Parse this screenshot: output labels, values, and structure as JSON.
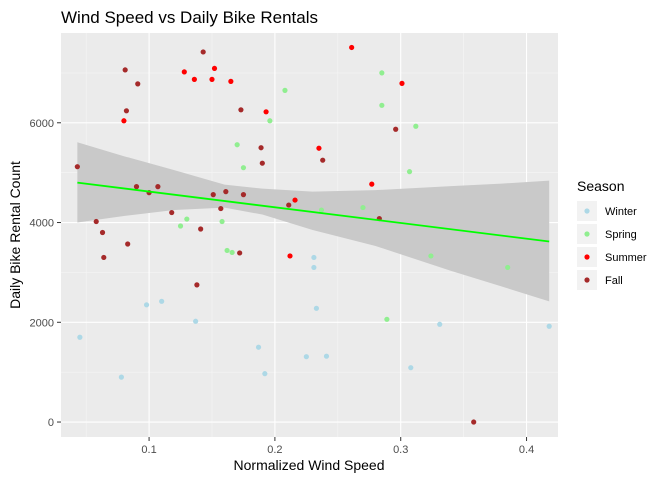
{
  "chart_data": {
    "type": "scatter",
    "title": "Wind Speed vs Daily Bike Rentals",
    "xlabel": "Normalized Wind Speed",
    "ylabel": "Daily Bike Rental Count",
    "xlim": [
      0.03,
      0.425
    ],
    "ylim": [
      -300,
      7800
    ],
    "x_ticks": [
      0.1,
      0.2,
      0.3,
      0.4
    ],
    "x_tick_labels": [
      "0.1",
      "0.2",
      "0.3",
      "0.4"
    ],
    "y_ticks": [
      0,
      2000,
      4000,
      6000
    ],
    "y_tick_labels": [
      "0",
      "2000",
      "4000",
      "6000"
    ],
    "grid": true,
    "legend": {
      "title": "Season",
      "placement": "right"
    },
    "series": [
      {
        "name": "Winter",
        "color": "#add8e6",
        "points": [
          [
            0.045,
            1700
          ],
          [
            0.078,
            900
          ],
          [
            0.098,
            2350
          ],
          [
            0.11,
            2420
          ],
          [
            0.137,
            2020
          ],
          [
            0.187,
            1500
          ],
          [
            0.192,
            970
          ],
          [
            0.225,
            1310
          ],
          [
            0.231,
            3100
          ],
          [
            0.231,
            3300
          ],
          [
            0.233,
            2280
          ],
          [
            0.241,
            1320
          ],
          [
            0.308,
            1090
          ],
          [
            0.331,
            1960
          ],
          [
            0.418,
            1920
          ]
        ]
      },
      {
        "name": "Spring",
        "color": "#90ee90",
        "points": [
          [
            0.125,
            3930
          ],
          [
            0.13,
            4070
          ],
          [
            0.158,
            4020
          ],
          [
            0.162,
            3440
          ],
          [
            0.166,
            3400
          ],
          [
            0.17,
            5560
          ],
          [
            0.175,
            5100
          ],
          [
            0.196,
            6040
          ],
          [
            0.208,
            6650
          ],
          [
            0.237,
            4250
          ],
          [
            0.27,
            4300
          ],
          [
            0.285,
            7000
          ],
          [
            0.285,
            6350
          ],
          [
            0.289,
            2060
          ],
          [
            0.307,
            5020
          ],
          [
            0.312,
            5930
          ],
          [
            0.324,
            3330
          ],
          [
            0.385,
            3100
          ]
        ]
      },
      {
        "name": "Summer",
        "color": "#ff0000",
        "points": [
          [
            0.08,
            6040
          ],
          [
            0.128,
            7020
          ],
          [
            0.136,
            6870
          ],
          [
            0.15,
            6870
          ],
          [
            0.152,
            7090
          ],
          [
            0.165,
            6830
          ],
          [
            0.193,
            6220
          ],
          [
            0.212,
            3330
          ],
          [
            0.216,
            4450
          ],
          [
            0.235,
            5490
          ],
          [
            0.261,
            7510
          ],
          [
            0.277,
            4770
          ],
          [
            0.301,
            6790
          ]
        ]
      },
      {
        "name": "Fall",
        "color": "#a52a2a",
        "points": [
          [
            0.043,
            5120
          ],
          [
            0.058,
            4020
          ],
          [
            0.063,
            3800
          ],
          [
            0.064,
            3300
          ],
          [
            0.081,
            7060
          ],
          [
            0.082,
            6240
          ],
          [
            0.083,
            3570
          ],
          [
            0.09,
            4720
          ],
          [
            0.091,
            6780
          ],
          [
            0.1,
            4600
          ],
          [
            0.107,
            4720
          ],
          [
            0.118,
            4200
          ],
          [
            0.138,
            2750
          ],
          [
            0.141,
            3870
          ],
          [
            0.143,
            7420
          ],
          [
            0.151,
            4560
          ],
          [
            0.157,
            4280
          ],
          [
            0.161,
            4620
          ],
          [
            0.172,
            3390
          ],
          [
            0.173,
            6260
          ],
          [
            0.175,
            4560
          ],
          [
            0.189,
            5500
          ],
          [
            0.19,
            5190
          ],
          [
            0.211,
            4350
          ],
          [
            0.238,
            5250
          ],
          [
            0.283,
            4080
          ],
          [
            0.296,
            5870
          ],
          [
            0.358,
            0
          ]
        ]
      }
    ],
    "trend_line": {
      "color": "#00ff00",
      "x": [
        0.043,
        0.418
      ],
      "y": [
        4800,
        3620
      ],
      "band_color": "#c9c9c9",
      "band": [
        [
          0.043,
          4000,
          5610
        ],
        [
          0.08,
          4130,
          5330
        ],
        [
          0.12,
          4250,
          5050
        ],
        [
          0.16,
          4300,
          4760
        ],
        [
          0.19,
          4160,
          4680
        ],
        [
          0.23,
          3850,
          4620
        ],
        [
          0.28,
          3530,
          4650
        ],
        [
          0.34,
          3030,
          4730
        ],
        [
          0.38,
          2720,
          4780
        ],
        [
          0.418,
          2420,
          4840
        ]
      ]
    }
  }
}
